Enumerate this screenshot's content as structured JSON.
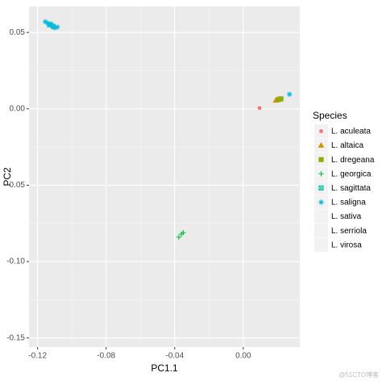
{
  "chart_data": {
    "type": "scatter",
    "x_label": "PC1.1",
    "y_label": "PC2",
    "xlim": [
      -0.125,
      0.033
    ],
    "ylim": [
      -0.156,
      0.067
    ],
    "xticks": [
      -0.12,
      -0.08,
      -0.04,
      {
        "value": 0,
        "label": "0.00"
      }
    ],
    "yticks": [
      {
        "value": -0.15,
        "label": "-0.15"
      },
      {
        "value": -0.1,
        "label": "-0.10"
      },
      -0.05,
      {
        "value": 0,
        "label": "0.00"
      },
      0.05
    ],
    "grid": true,
    "legend_title": "Species",
    "legend_position": "right",
    "series": [
      {
        "name": "L. aculeata",
        "color": "#F8766D",
        "shape": "circle",
        "x": [
          0.0095
        ],
        "y": [
          0.0005
        ]
      },
      {
        "name": "L. altaica",
        "color": "#D39200",
        "shape": "triangle",
        "x": [
          0.019,
          0.02,
          0.021
        ],
        "y": [
          0.0055,
          0.006,
          0.0065
        ]
      },
      {
        "name": "L. dregeana",
        "color": "#93AA00",
        "shape": "square",
        "x": [
          0.0205,
          0.022
        ],
        "y": [
          0.006,
          0.0065
        ]
      },
      {
        "name": "L. georgica",
        "color": "#00BA38",
        "shape": "plus",
        "x": [
          -0.0376,
          -0.036,
          -0.035
        ],
        "y": [
          -0.084,
          -0.082,
          -0.081
        ]
      },
      {
        "name": "L. sagittata",
        "color": "#00C19F",
        "shape": "square-x",
        "x": [
          -0.113,
          -0.111
        ],
        "y": [
          0.055,
          0.054
        ]
      },
      {
        "name": "L. saligna",
        "color": "#00B9E3",
        "shape": "asterisk",
        "x": [
          -0.1155,
          -0.114,
          -0.113,
          -0.112,
          -0.111,
          -0.11,
          -0.1085,
          0.027
        ],
        "y": [
          0.057,
          0.056,
          0.055,
          0.0555,
          0.054,
          0.053,
          0.0535,
          0.0095
        ]
      },
      {
        "name": "L. sativa",
        "x": [],
        "y": []
      },
      {
        "name": "L. serriola",
        "x": [],
        "y": []
      },
      {
        "name": "L. virosa",
        "x": [],
        "y": []
      }
    ],
    "watermark": "@51CTO博客"
  }
}
